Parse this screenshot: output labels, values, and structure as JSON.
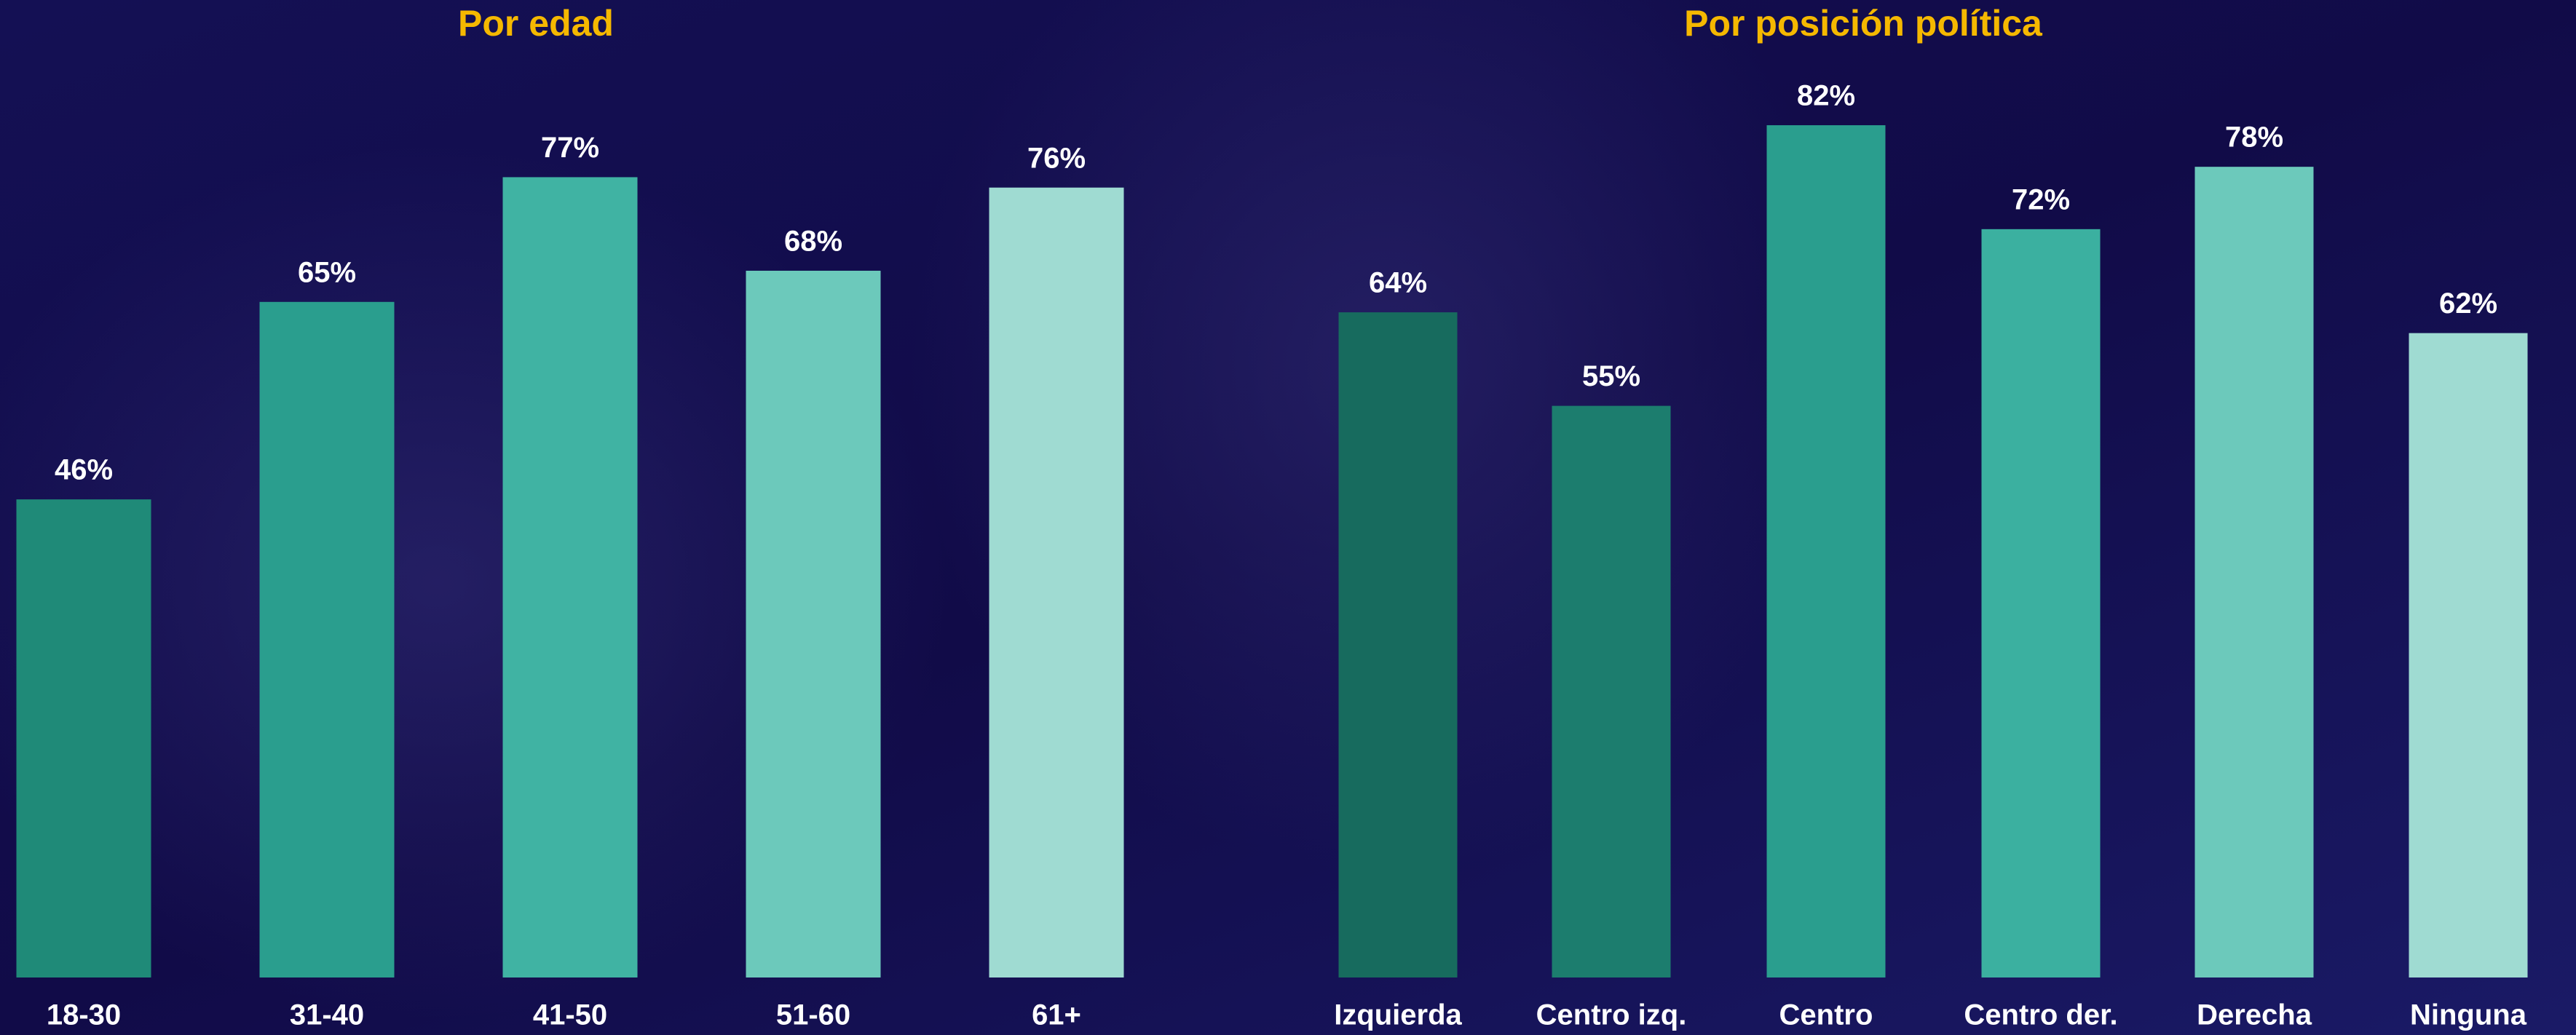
{
  "chart_data": [
    {
      "type": "bar",
      "title": "Por edad",
      "categories": [
        "18-30",
        "31-40",
        "41-50",
        "51-60",
        "61+"
      ],
      "values": [
        46,
        65,
        77,
        68,
        76
      ],
      "value_labels": [
        "46%",
        "65%",
        "77%",
        "68%",
        "76%"
      ],
      "colors": [
        "#1f8a78",
        "#2a9e8e",
        "#40b3a3",
        "#6cc9bb",
        "#9fdbd2"
      ]
    },
    {
      "type": "bar",
      "title": "Por posición política",
      "categories": [
        "Izquierda",
        "Centro izq.",
        "Centro",
        "Centro der.",
        "Derecha",
        "Ninguna"
      ],
      "values": [
        64,
        55,
        82,
        72,
        78,
        62
      ],
      "value_labels": [
        "64%",
        "55%",
        "82%",
        "72%",
        "78%",
        "62%"
      ],
      "colors": [
        "#176b5e",
        "#1c7d6e",
        "#2a9e8e",
        "#3bb0a0",
        "#6cc9bb",
        "#9fdbd2"
      ]
    }
  ]
}
